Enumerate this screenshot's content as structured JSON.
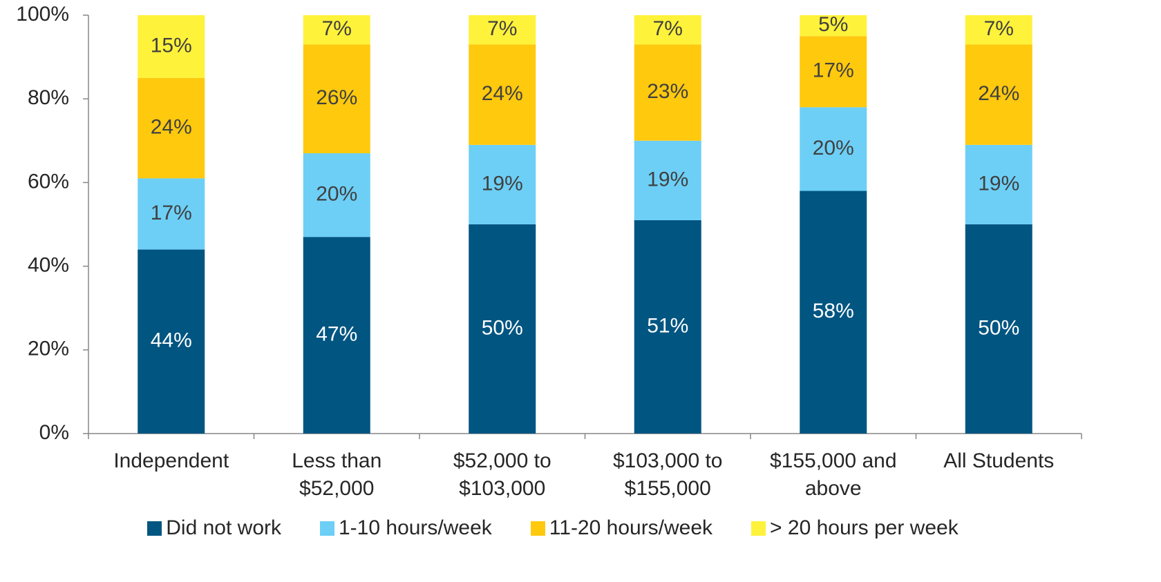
{
  "chart_data": {
    "type": "stacked_bar",
    "categories": [
      "Independent",
      "Less than\n$52,000",
      "$52,000 to\n$103,000",
      "$103,000 to\n$155,000",
      "$155,000 and\nabove",
      "All Students"
    ],
    "series": [
      {
        "name": "Did not work",
        "color": "#005581",
        "values": [
          44,
          47,
          50,
          51,
          58,
          50
        ],
        "value_labels": [
          "44%",
          "47%",
          "50%",
          "51%",
          "58%",
          "50%"
        ]
      },
      {
        "name": "1-10 hours/week",
        "color": "#6dcff6",
        "values": [
          17,
          20,
          19,
          19,
          20,
          19
        ],
        "value_labels": [
          "17%",
          "20%",
          "19%",
          "19%",
          "20%",
          "19%"
        ]
      },
      {
        "name": "11-20 hours/week",
        "color": "#ffc90e",
        "values": [
          24,
          26,
          24,
          23,
          17,
          24
        ],
        "value_labels": [
          "24%",
          "26%",
          "24%",
          "23%",
          "17%",
          "24%"
        ]
      },
      {
        "name": "> 20 hours per week",
        "color": "#fff23a",
        "values": [
          15,
          7,
          7,
          7,
          5,
          7
        ],
        "value_labels": [
          "15%",
          "7%",
          "7%",
          "7%",
          "5%",
          "7%"
        ]
      }
    ],
    "ylim": [
      0,
      100
    ],
    "yticks": [
      {
        "value": 0,
        "label": "0%"
      },
      {
        "value": 20,
        "label": "20%"
      },
      {
        "value": 40,
        "label": "40%"
      },
      {
        "value": 60,
        "label": "60%"
      },
      {
        "value": 80,
        "label": "80%"
      },
      {
        "value": 100,
        "label": "100%"
      }
    ],
    "legend": "bottom"
  }
}
